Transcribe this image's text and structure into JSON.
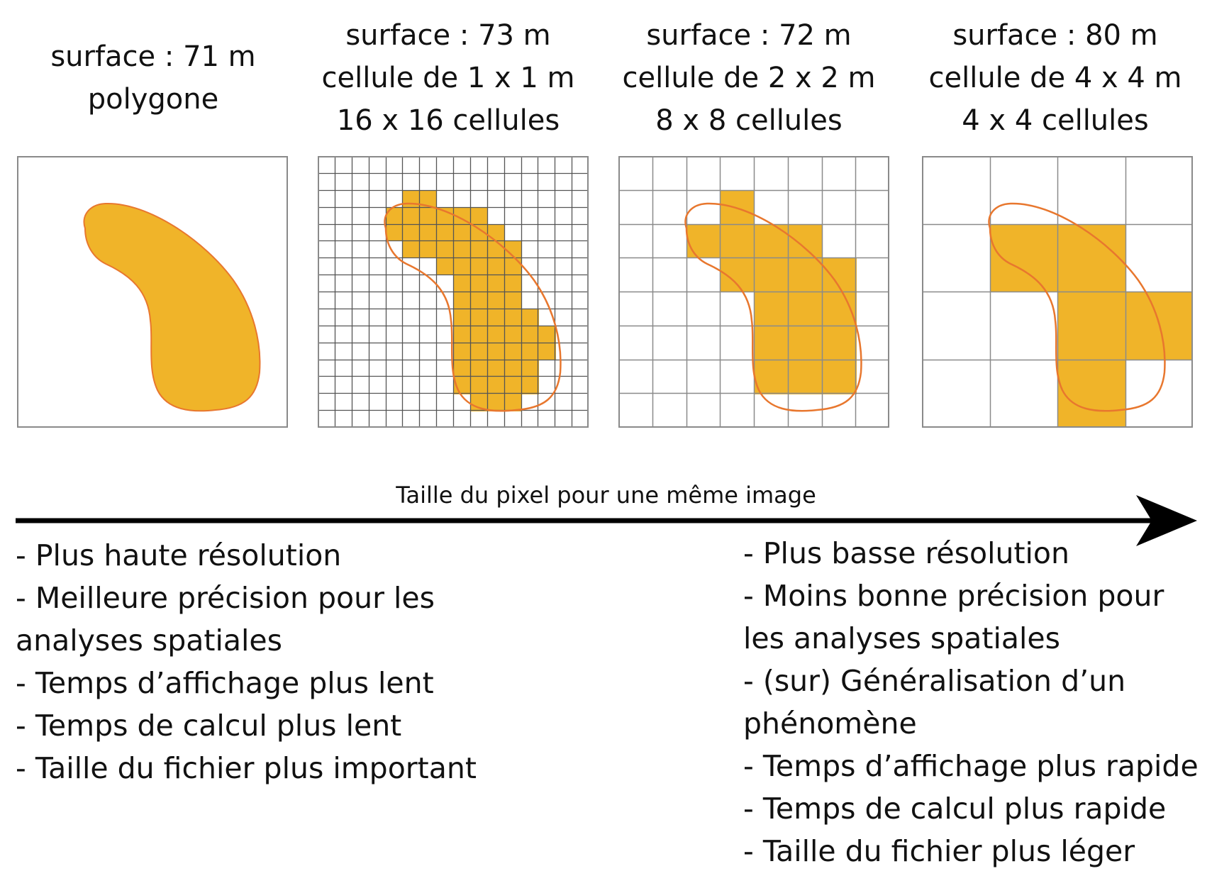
{
  "panels": [
    {
      "lines": [
        "surface : 71 m",
        "polygone"
      ]
    },
    {
      "lines": [
        "surface : 73 m",
        "cellule de 1 x 1 m",
        "16 x 16 cellules"
      ]
    },
    {
      "lines": [
        "surface : 72 m",
        "cellule de 2 x 2 m",
        "8 x 8 cellules"
      ]
    },
    {
      "lines": [
        "surface : 80 m",
        "cellule de 4 x 4 m",
        "4 x 4 cellules"
      ]
    }
  ],
  "axis_label": "Taille du pixel pour une même image",
  "left_list": [
    "- Plus haute résolution",
    "- Meilleure précision pour les",
    "analyses spatiales",
    "- Temps d’affichage plus lent",
    "- Temps de calcul plus lent",
    "- Taille du fichier plus important"
  ],
  "right_list": [
    "- Plus basse résolution",
    "- Moins bonne précision pour",
    "les analyses spatiales",
    "- (sur) Généralisation d’un",
    "phénomène",
    "- Temps d’affichage plus rapide",
    "- Temps de calcul plus rapide",
    "- Taille du fichier plus léger"
  ],
  "colors": {
    "fill": "#f0b429",
    "outline": "#e8772e",
    "grid": "#8a8a8a",
    "arrow": "#000000"
  }
}
